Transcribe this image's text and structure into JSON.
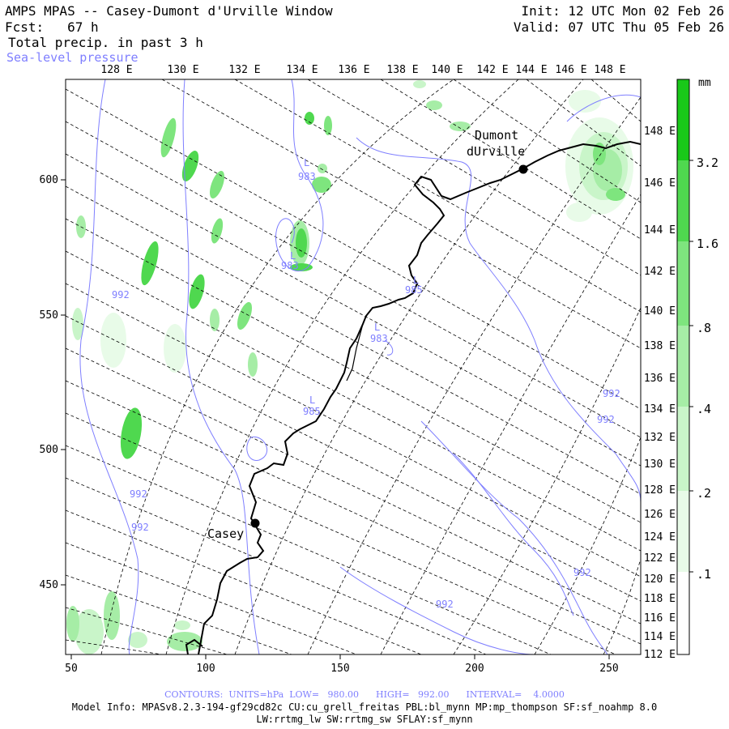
{
  "header": {
    "title": "AMPS MPAS -- Casey-Dumont d'Urville Window",
    "forecast": "Fcst:   67 h",
    "init": "Init: 12 UTC Mon 02 Feb 26",
    "valid": "Valid: 07 UTC Thu 05 Feb 26",
    "field_precip": "Total precip. in past 3 h",
    "field_slp": "Sea-level pressure"
  },
  "colors": {
    "slp_contour": "#7f7fff",
    "coastline": "#000000",
    "precip_scale": [
      "#ffffff",
      "#e8fbe8",
      "#c9f5c9",
      "#a6eda6",
      "#7ee57e",
      "#4fd84f",
      "#19c819"
    ]
  },
  "map": {
    "top_lon_labels": [
      "128 E",
      "130 E",
      "132 E",
      "134 E",
      "136 E",
      "138 E",
      "140 E",
      "142 E",
      "144 E",
      "146 E",
      "148 E"
    ],
    "right_lon_labels": [
      "148 E",
      "146 E",
      "144 E",
      "142 E",
      "140 E",
      "138 E",
      "136 E",
      "134 E",
      "132 E",
      "130 E",
      "128 E",
      "126 E",
      "124 E",
      "122 E",
      "120 E",
      "118 E",
      "116 E",
      "114 E",
      "112 E"
    ],
    "x_tick_labels": [
      "50",
      "100",
      "150",
      "200",
      "250"
    ],
    "y_tick_labels": [
      "600",
      "550",
      "500",
      "450"
    ],
    "stations": [
      {
        "name": "Casey"
      },
      {
        "name": "Dumont dUrville",
        "line1": "Dumont",
        "line2": "dUrville"
      }
    ],
    "slp_labels": [
      "992",
      "992",
      "992",
      "992",
      "992",
      "992",
      "992",
      "983",
      "983",
      "985",
      "983",
      "985"
    ],
    "low_markers": [
      "L",
      "L",
      "L",
      "L",
      "L"
    ]
  },
  "colorbar": {
    "unit": "mm",
    "labels": [
      "3.2",
      "1.6",
      ".8",
      ".4",
      ".2",
      ".1"
    ]
  },
  "footer": {
    "contours": "CONTOURS:  UNITS=hPa  LOW=   980.00      HIGH=   992.00      INTERVAL=    4.0000",
    "model_info": "Model Info: MPASv8.2.3-194-gf29cd82c CU:cu_grell_freitas PBL:bl_mynn MP:mp_thompson SF:sf_noahmp 8.0",
    "model_info2": "LW:rrtmg_lw SW:rrtmg_sw SFLAY:sf_mynn"
  }
}
